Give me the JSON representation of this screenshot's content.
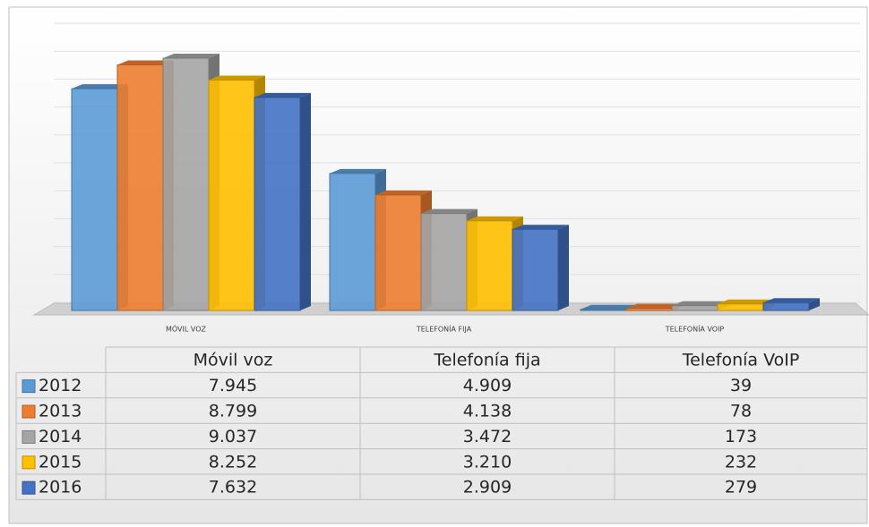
{
  "chart_data": {
    "type": "bar",
    "categories": [
      "MÓVIL VOZ",
      "TELEFONÍA FIJA",
      "TELEFONÍA VOIP"
    ],
    "table_columns": [
      "Móvil voz",
      "Telefonía fija",
      "Telefonía VoIP"
    ],
    "series": [
      {
        "name": "2012",
        "color": "#5b9bd5",
        "values": [
          7945,
          4909,
          39
        ],
        "value_labels": [
          "7.945",
          "4.909",
          "39"
        ]
      },
      {
        "name": "2013",
        "color": "#ed7d31",
        "values": [
          8799,
          4138,
          78
        ],
        "value_labels": [
          "8.799",
          "4.138",
          "78"
        ]
      },
      {
        "name": "2014",
        "color": "#a5a5a5",
        "values": [
          9037,
          3472,
          173
        ],
        "value_labels": [
          "9.037",
          "3.472",
          "173"
        ]
      },
      {
        "name": "2015",
        "color": "#ffc000",
        "values": [
          8252,
          3210,
          232
        ],
        "value_labels": [
          "8.252",
          "3.210",
          "232"
        ]
      },
      {
        "name": "2016",
        "color": "#4472c4",
        "values": [
          7632,
          2909,
          279
        ],
        "value_labels": [
          "7.632",
          "2.909",
          "279"
        ]
      }
    ],
    "ylim": [
      0,
      10000
    ],
    "yticks": [
      0,
      1000,
      2000,
      3000,
      4000,
      5000,
      6000,
      7000,
      8000,
      9000,
      10000
    ],
    "grid": true
  }
}
